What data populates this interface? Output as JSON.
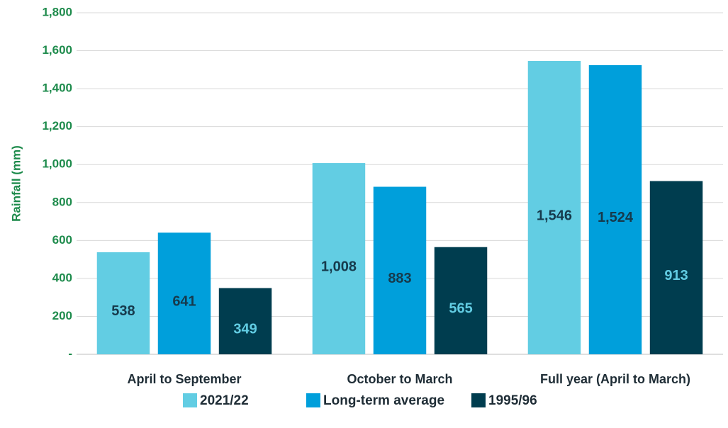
{
  "chart_data": {
    "type": "bar",
    "y_label": "Rainfall (mm)",
    "categories": [
      "April to September",
      "October to March",
      "Full year (April to March)"
    ],
    "series": [
      {
        "name": "2021/22",
        "color": "#62cde3",
        "label_color": "#163a4c",
        "values": [
          538,
          1008,
          1546
        ],
        "value_labels": [
          "538",
          "1,008",
          "1,546"
        ]
      },
      {
        "name": "Long-term average",
        "color": "#009fdb",
        "label_color": "#163a4c",
        "values": [
          641,
          883,
          1524
        ],
        "value_labels": [
          "641",
          "883",
          "1,524"
        ]
      },
      {
        "name": "1995/96",
        "color": "#003d4f",
        "label_color": "#62cde3",
        "values": [
          349,
          565,
          913
        ],
        "value_labels": [
          "349",
          "565",
          "913"
        ]
      }
    ],
    "ylim": [
      0,
      1800
    ],
    "yticks": [
      {
        "value": 0,
        "label": "-"
      },
      200,
      400,
      600,
      800,
      {
        "value": 1000,
        "label": "1,000"
      },
      {
        "value": 1200,
        "label": "1,200"
      },
      {
        "value": 1400,
        "label": "1,400"
      },
      {
        "value": 1600,
        "label": "1,600"
      },
      {
        "value": 1800,
        "label": "1,800"
      }
    ],
    "grid": true
  }
}
